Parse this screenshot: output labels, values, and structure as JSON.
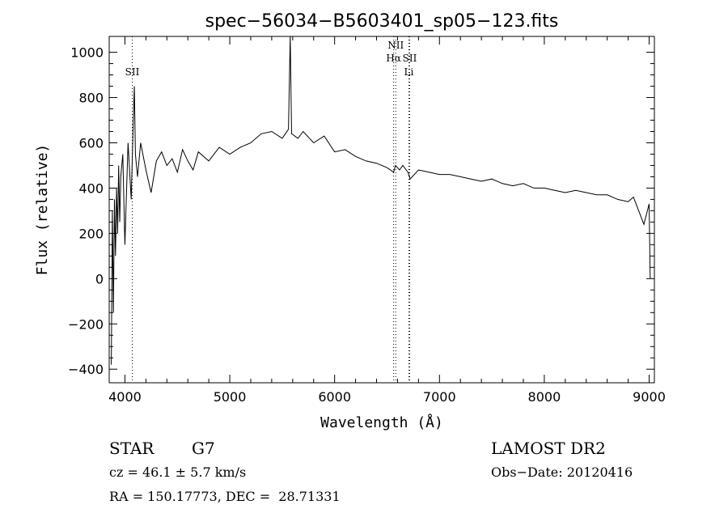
{
  "chart_data": {
    "type": "line",
    "title": "spec−56034−B5603401_sp05−123.fits",
    "xlabel": "Wavelength (Å)",
    "ylabel": "Flux (relative)",
    "xlim": [
      3850,
      9050
    ],
    "ylim": [
      -460,
      1070
    ],
    "xticks": [
      4000,
      5000,
      6000,
      7000,
      8000,
      9000
    ],
    "yticks": [
      -400,
      -200,
      0,
      200,
      400,
      600,
      800,
      1000
    ],
    "grid": false,
    "legend": "none",
    "series": [
      {
        "x": [
          3870,
          3880,
          3890,
          3900,
          3910,
          3920,
          3930,
          3940,
          3950,
          3960,
          3980,
          4000,
          4030,
          4060,
          4080,
          4090,
          4100,
          4120,
          4150,
          4200,
          4250,
          4300,
          4350,
          4400,
          4450,
          4500,
          4550,
          4600,
          4650,
          4700,
          4800,
          4900,
          5000,
          5100,
          5200,
          5300,
          5400,
          5500,
          5560,
          5577,
          5590,
          5650,
          5700,
          5800,
          5900,
          6000,
          6100,
          6200,
          6300,
          6400,
          6500,
          6563,
          6580,
          6620,
          6650,
          6700,
          6720,
          6800,
          6900,
          7000,
          7100,
          7200,
          7300,
          7400,
          7500,
          7600,
          7700,
          7800,
          7900,
          8000,
          8100,
          8200,
          8300,
          8400,
          8500,
          8600,
          8700,
          8800,
          8850,
          8900,
          8950,
          9000,
          9010
        ],
        "y": [
          -380,
          300,
          -150,
          350,
          100,
          400,
          200,
          500,
          250,
          450,
          550,
          150,
          600,
          350,
          700,
          850,
          550,
          450,
          600,
          480,
          380,
          520,
          560,
          500,
          530,
          470,
          570,
          520,
          480,
          560,
          520,
          580,
          550,
          580,
          600,
          640,
          650,
          620,
          660,
          1070,
          640,
          620,
          650,
          600,
          630,
          560,
          570,
          540,
          520,
          510,
          490,
          470,
          500,
          480,
          500,
          470,
          440,
          480,
          470,
          460,
          460,
          450,
          440,
          430,
          440,
          420,
          410,
          420,
          400,
          400,
          390,
          380,
          390,
          380,
          370,
          370,
          350,
          340,
          360,
          300,
          240,
          330,
          0
        ]
      }
    ],
    "line_markers": [
      {
        "label": "SII",
        "x": 4070
      },
      {
        "label": "NII",
        "x": 6583
      },
      {
        "label": "Hα",
        "x": 6563
      },
      {
        "label": "SII",
        "x": 6716
      },
      {
        "label": "Li",
        "x": 6708
      }
    ]
  },
  "info": {
    "object_class": "STAR",
    "subclass": "G7",
    "survey": "LAMOST DR2",
    "cz": "cz = 46.1 ± 5.7 km/s",
    "obs_date": "Obs−Date: 20120416",
    "coords": "RA = 150.17773, DEC =  28.71331"
  }
}
